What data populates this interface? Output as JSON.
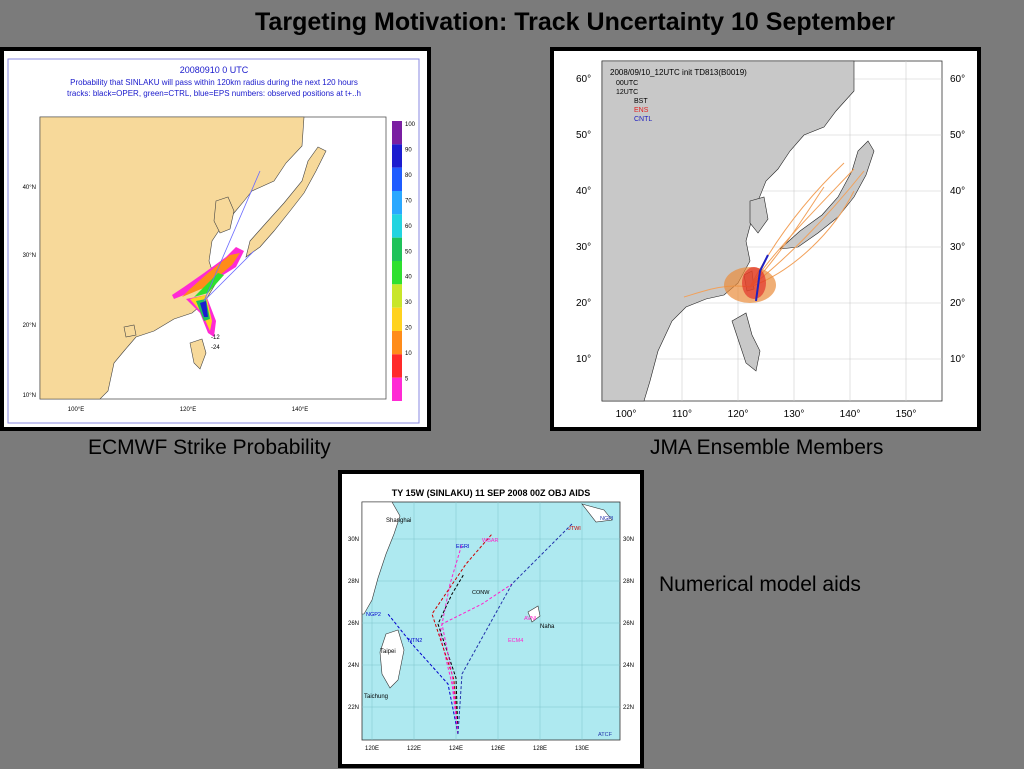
{
  "title": "Targeting Motivation: Track Uncertainty  10 September",
  "captions": {
    "ecmwf": "ECMWF Strike Probability",
    "jma": "JMA Ensemble Members",
    "aids": "Numerical model aids"
  },
  "ecmwf_panel": {
    "line1": "20080910 0 UTC",
    "line2": "Probability that SINLAKU will pass within 120km radius during the next 120 hours",
    "line3": "tracks: black=OPER, green=CTRL, blue=EPS numbers: observed positions at t+..h",
    "lat_labels": [
      "40°N",
      "30°N",
      "20°N",
      "10°N"
    ],
    "lon_labels": [
      "100°E",
      "120°E",
      "140°E"
    ],
    "colorbar_labels": [
      "100",
      "90",
      "80",
      "70",
      "60",
      "50",
      "40",
      "30",
      "20",
      "10",
      "5"
    ],
    "colorbar_colors": [
      "#7a1fa2",
      "#1c1ccf",
      "#1f5cff",
      "#2aa8ff",
      "#22d4e0",
      "#1fc25a",
      "#2fe02f",
      "#c8e62a",
      "#ffd21f",
      "#ff8c1a",
      "#ff2a2a",
      "#ff2ad4"
    ],
    "point_labels": [
      "-12",
      "-24"
    ]
  },
  "jma_panel": {
    "header": "2008/09/10_12UTC init TD813(B0019)",
    "legend": [
      "00UTC",
      "12UTC",
      "BST",
      "ENS",
      "CNTL"
    ],
    "legend_colors": {
      "ENS": "#e02020",
      "CNTL": "#2020c0"
    },
    "lat_labels": [
      "60°",
      "50°",
      "40°",
      "30°",
      "20°",
      "10°"
    ],
    "lon_labels": [
      "100°",
      "110°",
      "120°",
      "130°",
      "140°",
      "150°"
    ]
  },
  "aids_panel": {
    "header": "TY 15W (SINLAKU) 11 SEP 2008 00Z OBJ AIDS",
    "lat_labels": [
      "30N",
      "28N",
      "26N",
      "24N",
      "22N"
    ],
    "lon_labels": [
      "120E",
      "122E",
      "124E",
      "126E",
      "128E",
      "130E"
    ],
    "places": [
      "Shanghai",
      "Naha",
      "Taipei",
      "Taichung"
    ],
    "models": [
      "JTWI",
      "NGPI",
      "EGRI",
      "WBAR",
      "CONW",
      "NGP2",
      "ECM4",
      "NTN2",
      "AVNI",
      "ATCF"
    ]
  }
}
